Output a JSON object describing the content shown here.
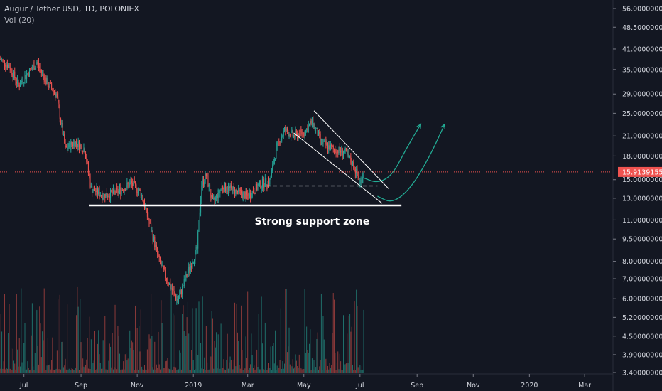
{
  "header": {
    "symbol_line": "Augur / Tether USD, 1D, POLONIEX",
    "volume_label": "Vol (20)"
  },
  "colors": {
    "background": "#131722",
    "up": "#26a69a",
    "down": "#ef5350",
    "up_volume": "#1f6f6a",
    "down_volume": "#8c3a3a",
    "annotation": "#ffffff",
    "projection": "#22ab94",
    "price_line": "#ef5350"
  },
  "chart_data": {
    "type": "candlestick",
    "title": "Augur / Tether USD, 1D, POLONIEX",
    "y_scale": "log",
    "ylim": [
      3.4,
      58.5
    ],
    "x_range": [
      "2018-06-05",
      "2020-03-31"
    ],
    "x_tick_labels": [
      "Jul",
      "Sep",
      "Nov",
      "2019",
      "Mar",
      "May",
      "Jul",
      "Sep",
      "Nov",
      "2020",
      "Mar"
    ],
    "x_tick_dates": [
      "2018-07-01",
      "2018-09-01",
      "2018-11-01",
      "2019-01-01",
      "2019-03-01",
      "2019-05-01",
      "2019-07-01",
      "2019-09-01",
      "2019-11-01",
      "2020-01-01",
      "2020-03-01"
    ],
    "y_tick_labels": [
      "56.00000000",
      "48.50000000",
      "41.00000000",
      "35.00000000",
      "29.00000000",
      "25.00000000",
      "21.00000000",
      "18.00000000",
      "15.00000000",
      "13.00000000",
      "11.00000000",
      "9.50000000",
      "8.00000000",
      "7.00000000",
      "6.00000000",
      "5.20000000",
      "4.50000000",
      "3.90000000",
      "3.40000000"
    ],
    "y_tick_values": [
      56,
      48.5,
      41,
      35,
      29,
      25,
      21,
      18,
      15,
      13,
      11,
      9.5,
      8,
      7,
      6,
      5.2,
      4.5,
      3.9,
      3.4
    ],
    "last_price": "15.91391556",
    "last_price_value": 15.91391556,
    "price_path": [
      {
        "date": "2018-06-05",
        "close": 38
      },
      {
        "date": "2018-06-15",
        "close": 36
      },
      {
        "date": "2018-06-25",
        "close": 31
      },
      {
        "date": "2018-07-05",
        "close": 34
      },
      {
        "date": "2018-07-15",
        "close": 37
      },
      {
        "date": "2018-07-25",
        "close": 32
      },
      {
        "date": "2018-08-05",
        "close": 29
      },
      {
        "date": "2018-08-15",
        "close": 19
      },
      {
        "date": "2018-08-25",
        "close": 20
      },
      {
        "date": "2018-09-05",
        "close": 19
      },
      {
        "date": "2018-09-12",
        "close": 14
      },
      {
        "date": "2018-09-25",
        "close": 13.3
      },
      {
        "date": "2018-10-10",
        "close": 13.6
      },
      {
        "date": "2018-10-25",
        "close": 14.6
      },
      {
        "date": "2018-11-05",
        "close": 13.6
      },
      {
        "date": "2018-11-15",
        "close": 10.5
      },
      {
        "date": "2018-11-25",
        "close": 8.0
      },
      {
        "date": "2018-12-05",
        "close": 6.8
      },
      {
        "date": "2018-12-15",
        "close": 5.9
      },
      {
        "date": "2018-12-25",
        "close": 7.2
      },
      {
        "date": "2019-01-05",
        "close": 8.8
      },
      {
        "date": "2019-01-10",
        "close": 14.5
      },
      {
        "date": "2019-01-15",
        "close": 15.5
      },
      {
        "date": "2019-01-22",
        "close": 12.5
      },
      {
        "date": "2019-02-01",
        "close": 14.2
      },
      {
        "date": "2019-02-15",
        "close": 13.8
      },
      {
        "date": "2019-03-01",
        "close": 13.2
      },
      {
        "date": "2019-03-15",
        "close": 14.5
      },
      {
        "date": "2019-03-25",
        "close": 14.8
      },
      {
        "date": "2019-04-01",
        "close": 19
      },
      {
        "date": "2019-04-10",
        "close": 22
      },
      {
        "date": "2019-04-20",
        "close": 21
      },
      {
        "date": "2019-05-01",
        "close": 21.5
      },
      {
        "date": "2019-05-10",
        "close": 23.5
      },
      {
        "date": "2019-05-20",
        "close": 20
      },
      {
        "date": "2019-06-01",
        "close": 19
      },
      {
        "date": "2019-06-15",
        "close": 18.5
      },
      {
        "date": "2019-06-25",
        "close": 16.5
      },
      {
        "date": "2019-07-01",
        "close": 14.5
      },
      {
        "date": "2019-07-05",
        "close": 15.9
      }
    ],
    "annotations": [
      {
        "text": "Strong support zone",
        "type": "label",
        "date": "2019-05-10",
        "value": 10.6
      },
      {
        "type": "support-line",
        "from_date": "2018-09-10",
        "to_date": "2019-08-15",
        "value": 12.3
      },
      {
        "type": "dashed-level",
        "from_date": "2019-03-22",
        "to_date": "2019-07-20",
        "value": 14.3
      },
      {
        "type": "channel-upper",
        "from": {
          "date": "2019-05-12",
          "value": 25.5
        },
        "to": {
          "date": "2019-08-01",
          "value": 14.0
        }
      },
      {
        "type": "channel-lower",
        "from": {
          "date": "2019-04-20",
          "value": 21.5
        },
        "to": {
          "date": "2019-07-25",
          "value": 12.5
        }
      },
      {
        "type": "projection-arrow",
        "path": [
          {
            "date": "2019-07-05",
            "value": 15.2
          },
          {
            "date": "2019-07-20",
            "value": 14.6
          },
          {
            "date": "2019-08-05",
            "value": 15.5
          },
          {
            "date": "2019-08-20",
            "value": 19
          },
          {
            "date": "2019-09-05",
            "value": 23
          }
        ]
      },
      {
        "type": "projection-arrow",
        "path": [
          {
            "date": "2019-07-20",
            "value": 13.2
          },
          {
            "date": "2019-08-05",
            "value": 12.5
          },
          {
            "date": "2019-08-25",
            "value": 14.0
          },
          {
            "date": "2019-09-15",
            "value": 18
          },
          {
            "date": "2019-10-01",
            "value": 23
          }
        ]
      }
    ]
  }
}
